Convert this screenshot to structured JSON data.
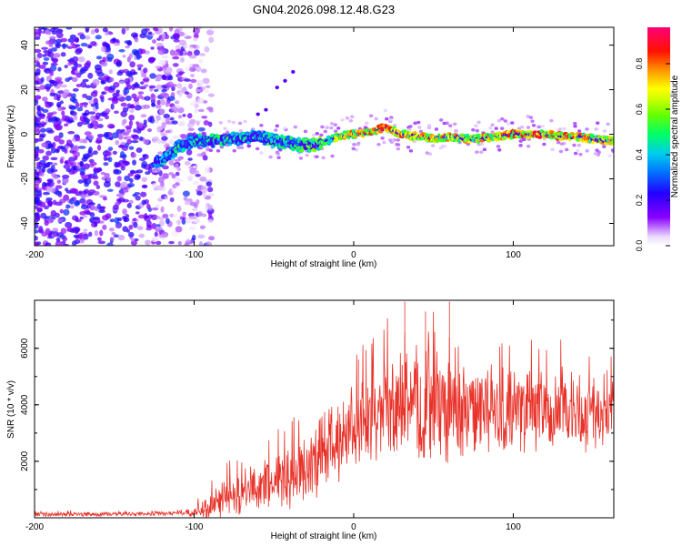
{
  "title": "GN04.2026.098.12.48.G23",
  "colors": {
    "snr_line": "#e8332a",
    "colormap": [
      "#ffffff",
      "#8800ff",
      "#0000ff",
      "#00bbff",
      "#00ff66",
      "#aaff00",
      "#ffff00",
      "#ff8800",
      "#ff0000",
      "#ff0088"
    ]
  },
  "chart_data": [
    {
      "type": "heatmap",
      "name": "spectrogram",
      "xlabel": "Height of straight line (km)",
      "ylabel": "Frequency (Hz)",
      "xlim": [
        -200,
        163
      ],
      "ylim": [
        -50,
        48
      ],
      "xticks": [
        {
          "value": -200,
          "label": "-200"
        },
        {
          "value": -100,
          "label": "-100"
        },
        {
          "value": 0,
          "label": "0"
        },
        {
          "value": 100,
          "label": "100"
        }
      ],
      "yticks": [
        {
          "value": -40,
          "label": "-40"
        },
        {
          "value": -20,
          "label": "-20"
        },
        {
          "value": 0,
          "label": "0"
        },
        {
          "value": 20,
          "label": "20"
        },
        {
          "value": 40,
          "label": "40"
        }
      ],
      "colorbar": {
        "label": "Normalized spectral amplitude",
        "range": [
          0,
          0.96
        ],
        "ticks": [
          {
            "value": 0.0,
            "label": "0.0"
          },
          {
            "value": 0.2,
            "label": "0.2"
          },
          {
            "value": 0.4,
            "label": "0.4"
          },
          {
            "value": 0.6,
            "label": "0.6"
          },
          {
            "value": 0.8,
            "label": "0.8"
          }
        ]
      },
      "signal_track": {
        "x": [
          -120,
          -110,
          -100,
          -90,
          -80,
          -70,
          -60,
          -50,
          -40,
          -30,
          -20,
          -10,
          0,
          10,
          20,
          30,
          40,
          50,
          60,
          70,
          80,
          90,
          100,
          110,
          120,
          130,
          140,
          150,
          160
        ],
        "freq": [
          -12,
          -6,
          -3,
          -3,
          -2,
          -2,
          -1,
          -3,
          -4,
          -5,
          -4,
          -1,
          0,
          1,
          3,
          0,
          -1,
          -2,
          -1,
          -2,
          -2,
          -1,
          0,
          0,
          0,
          -1,
          -1,
          -2,
          -3
        ],
        "amplitude": [
          0.45,
          0.5,
          0.5,
          0.5,
          0.55,
          0.5,
          0.5,
          0.55,
          0.5,
          0.6,
          0.6,
          0.75,
          0.85,
          0.88,
          0.92,
          0.85,
          0.8,
          0.82,
          0.8,
          0.78,
          0.8,
          0.85,
          0.9,
          0.88,
          0.9,
          0.85,
          0.85,
          0.8,
          0.8
        ]
      },
      "noise_region": {
        "x_from": -200,
        "x_to": -95,
        "freq_from": -50,
        "freq_to": 48,
        "amplitude": 0.25
      }
    },
    {
      "type": "line",
      "name": "snr",
      "xlabel": "Height of straight line (km)",
      "ylabel": "SNR (10 * v/v)",
      "xlim": [
        -200,
        163
      ],
      "ylim": [
        0,
        7700
      ],
      "xticks": [
        {
          "value": -200,
          "label": "-200"
        },
        {
          "value": -100,
          "label": "-100"
        },
        {
          "value": 0,
          "label": "0"
        },
        {
          "value": 100,
          "label": "100"
        }
      ],
      "yticks": [
        {
          "value": 2000,
          "label": "2000"
        },
        {
          "value": 4000,
          "label": "4000"
        },
        {
          "value": 6000,
          "label": "6000"
        }
      ],
      "envelope": {
        "x": [
          -200,
          -180,
          -160,
          -140,
          -120,
          -100,
          -90,
          -80,
          -70,
          -60,
          -50,
          -40,
          -30,
          -20,
          -10,
          0,
          10,
          20,
          30,
          40,
          50,
          60,
          70,
          80,
          90,
          100,
          110,
          120,
          130,
          140,
          150,
          160,
          163
        ],
        "mean": [
          120,
          120,
          130,
          140,
          150,
          200,
          450,
          700,
          900,
          1100,
          1300,
          1500,
          1800,
          2200,
          2800,
          3300,
          3600,
          3800,
          4000,
          4100,
          4000,
          3900,
          3800,
          3800,
          3700,
          3700,
          3800,
          3800,
          3800,
          3700,
          3700,
          3800,
          3800
        ],
        "spread": [
          80,
          80,
          80,
          80,
          90,
          150,
          500,
          700,
          800,
          900,
          1000,
          1200,
          1300,
          1500,
          1600,
          1500,
          1600,
          1800,
          2000,
          2100,
          2000,
          2000,
          1800,
          1700,
          1600,
          1500,
          1500,
          1400,
          1400,
          1400,
          1400,
          1300,
          1300
        ]
      },
      "peaks": [
        {
          "x": 32,
          "y": 7650
        },
        {
          "x": 60,
          "y": 7650
        },
        {
          "x": 3,
          "y": 5600
        },
        {
          "x": 45,
          "y": 7300
        }
      ]
    }
  ]
}
